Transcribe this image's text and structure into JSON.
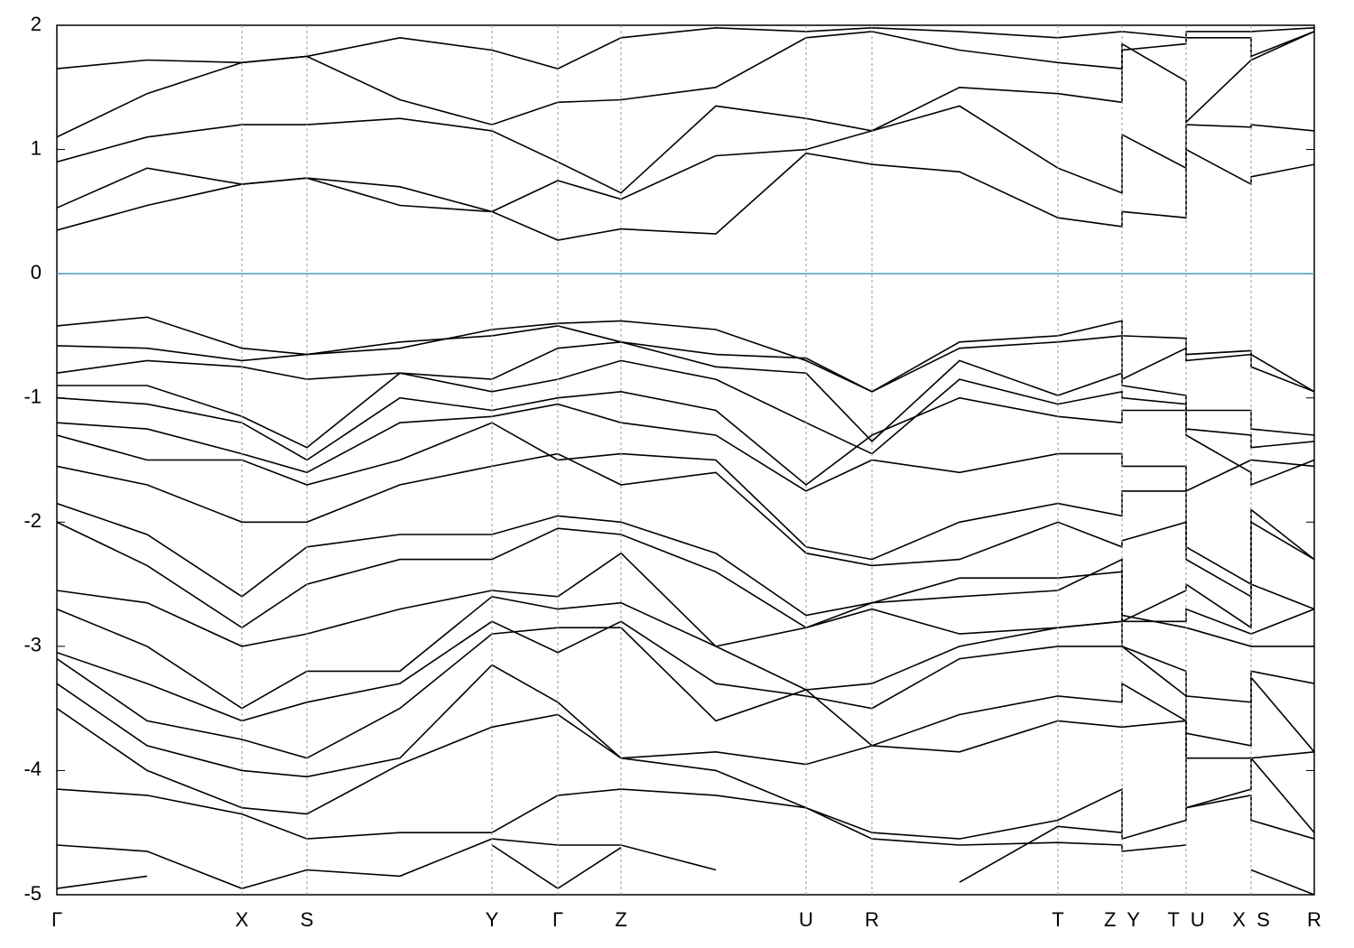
{
  "chart_data": {
    "type": "line",
    "color": "#000000",
    "xlim": [
      0,
      13.93
    ],
    "ylim": [
      -5,
      2
    ],
    "yticks": [
      -5,
      -4,
      -3,
      -2,
      -1,
      0,
      1,
      2
    ],
    "xticks": [
      {
        "value": 0,
        "label": "Γ"
      },
      {
        "value": 2.05,
        "label": "X"
      },
      {
        "value": 2.77,
        "label": "S"
      },
      {
        "value": 4.82,
        "label": "Y"
      },
      {
        "value": 5.55,
        "label": "Γ"
      },
      {
        "value": 6.25,
        "label": "Z"
      },
      {
        "value": 8.3,
        "label": "U"
      },
      {
        "value": 9.03,
        "label": "R"
      },
      {
        "value": 11.09,
        "label": "T"
      },
      {
        "value": 11.8,
        "label": "Z  Y"
      },
      {
        "value": 12.51,
        "label": "T  U"
      },
      {
        "value": 13.23,
        "label": "X  S"
      },
      {
        "value": 13.93,
        "label": "R"
      }
    ],
    "reference_line": {
      "value": 0,
      "color": "#4a9fc0"
    },
    "x": [
      0,
      1.0,
      2.05,
      2.77,
      3.8,
      4.82,
      5.55,
      6.25,
      7.3,
      8.3,
      9.03,
      10.0,
      11.09,
      11.8,
      11.8,
      12.51,
      12.51,
      13.23,
      13.23,
      13.93
    ],
    "series": [
      {
        "values": [
          0.35,
          0.55,
          0.72,
          0.77,
          0.55,
          0.5,
          0.27,
          0.36,
          0.32,
          0.97,
          0.88,
          0.82,
          0.45,
          0.38,
          0.5,
          0.45,
          1.0,
          0.72,
          0.78,
          0.88
        ]
      },
      {
        "values": [
          0.53,
          0.85,
          0.72,
          0.77,
          0.7,
          0.5,
          0.75,
          0.6,
          0.95,
          1.0,
          1.15,
          1.35,
          0.85,
          0.65,
          1.12,
          0.85,
          1.2,
          1.18,
          1.2,
          1.15
        ]
      },
      {
        "values": [
          0.9,
          1.1,
          1.2,
          1.2,
          1.25,
          1.15,
          0.9,
          0.65,
          1.35,
          1.25,
          1.15,
          1.5,
          1.45,
          1.38,
          1.85,
          1.55,
          1.22,
          1.72,
          1.72,
          1.95
        ]
      },
      {
        "values": [
          1.1,
          1.45,
          1.7,
          1.75,
          1.4,
          1.2,
          1.38,
          1.4,
          1.5,
          1.9,
          1.95,
          1.8,
          1.7,
          1.65,
          1.8,
          1.85,
          1.9,
          1.9,
          1.75,
          1.95
        ]
      },
      {
        "values": [
          1.65,
          1.72,
          1.7,
          1.75,
          1.9,
          1.8,
          1.65,
          1.9,
          1.98,
          1.95,
          1.98,
          1.95,
          1.9,
          1.95,
          1.95,
          1.9,
          1.95,
          1.95,
          1.95,
          1.98
        ]
      },
      {
        "values": [
          -0.42,
          -0.35,
          -0.6,
          -0.65,
          -0.6,
          -0.45,
          -0.4,
          -0.38,
          -0.45,
          -0.7,
          -0.95,
          -0.55,
          -0.5,
          -0.38,
          -0.5,
          -0.52,
          -0.65,
          -0.62,
          -0.65,
          -0.95
        ]
      },
      {
        "values": [
          -0.58,
          -0.6,
          -0.7,
          -0.65,
          -0.55,
          -0.5,
          -0.42,
          -0.55,
          -0.65,
          -0.68,
          -0.95,
          -0.6,
          -0.55,
          -0.5,
          -0.85,
          -0.6,
          -0.7,
          -0.65,
          -0.75,
          -0.95
        ]
      },
      {
        "values": [
          -0.8,
          -0.7,
          -0.75,
          -0.85,
          -0.8,
          -0.85,
          -0.6,
          -0.55,
          -0.75,
          -0.8,
          -1.35,
          -0.7,
          -0.98,
          -0.8,
          -0.9,
          -0.98,
          -1.1,
          -1.1,
          -1.25,
          -1.3
        ]
      },
      {
        "values": [
          -0.9,
          -0.9,
          -1.15,
          -1.4,
          -0.8,
          -0.95,
          -0.85,
          -0.7,
          -0.85,
          -1.2,
          -1.45,
          -0.85,
          -1.05,
          -0.95,
          -1.0,
          -1.05,
          -1.25,
          -1.3,
          -1.4,
          -1.35
        ]
      },
      {
        "values": [
          -1.0,
          -1.05,
          -1.2,
          -1.5,
          -1.0,
          -1.1,
          -1.0,
          -0.95,
          -1.1,
          -1.7,
          -1.3,
          -1.0,
          -1.15,
          -1.2,
          -1.1,
          -1.1,
          -1.3,
          -1.6,
          -1.7,
          -1.5
        ]
      },
      {
        "values": [
          -1.2,
          -1.25,
          -1.45,
          -1.6,
          -1.2,
          -1.15,
          -1.05,
          -1.2,
          -1.3,
          -1.75,
          -1.5,
          -1.6,
          -1.45,
          -1.45,
          -1.55,
          -1.55,
          -1.75,
          -1.5,
          -1.5,
          -1.55
        ]
      },
      {
        "values": [
          -1.3,
          -1.5,
          -1.5,
          -1.7,
          -1.5,
          -1.2,
          -1.5,
          -1.45,
          -1.5,
          -2.2,
          -2.3,
          -2.0,
          -1.85,
          -1.95,
          -1.75,
          -1.75,
          -2.2,
          -2.5,
          -1.9,
          -2.3
        ]
      },
      {
        "values": [
          -1.55,
          -1.7,
          -2.0,
          -2.0,
          -1.7,
          -1.55,
          -1.45,
          -1.7,
          -1.6,
          -2.25,
          -2.35,
          -2.3,
          -2.0,
          -2.2,
          -2.15,
          -2.0,
          -2.3,
          -2.6,
          -2.0,
          -2.3
        ]
      },
      {
        "values": [
          -1.85,
          -2.1,
          -2.6,
          -2.2,
          -2.1,
          -2.1,
          -1.95,
          -2.0,
          -2.25,
          -2.75,
          -2.65,
          -2.6,
          -2.55,
          -2.3,
          -2.8,
          -2.55,
          -2.5,
          -2.85,
          -2.5,
          -2.7
        ]
      },
      {
        "values": [
          -2.0,
          -2.35,
          -2.85,
          -2.5,
          -2.3,
          -2.3,
          -2.05,
          -2.1,
          -2.4,
          -2.85,
          -2.65,
          -2.45,
          -2.45,
          -2.4,
          -2.8,
          -2.8,
          -2.7,
          -2.9,
          -2.9,
          -2.7
        ]
      },
      {
        "values": [
          -2.55,
          -2.65,
          -3.0,
          -2.9,
          -2.7,
          -2.55,
          -2.6,
          -2.25,
          -3.0,
          -2.85,
          -2.7,
          -2.9,
          -2.85,
          -2.8,
          -2.75,
          -2.85,
          -2.85,
          -3.0,
          -3.0,
          -3.0
        ]
      },
      {
        "values": [
          -2.7,
          -3.0,
          -3.5,
          -3.2,
          -3.2,
          -2.6,
          -2.7,
          -2.65,
          -3.0,
          -3.35,
          -3.3,
          -3.0,
          -2.85,
          -2.8,
          -3.0,
          -3.2,
          -3.4,
          -3.45,
          -3.2,
          -3.3
        ]
      },
      {
        "values": [
          -3.05,
          -3.3,
          -3.6,
          -3.45,
          -3.3,
          -2.8,
          -3.05,
          -2.8,
          -3.3,
          -3.4,
          -3.5,
          -3.1,
          -3.0,
          -3.0,
          -3.0,
          -3.4,
          -3.7,
          -3.8,
          -3.25,
          -3.85
        ]
      },
      {
        "values": [
          -3.1,
          -3.6,
          -3.75,
          -3.9,
          -3.5,
          -2.9,
          -2.85,
          -2.85,
          -3.6,
          -3.35,
          -3.8,
          -3.55,
          -3.4,
          -3.45,
          -3.3,
          -3.6,
          -3.9,
          -3.9,
          -3.9,
          -3.85
        ]
      },
      {
        "values": [
          -3.3,
          -3.8,
          -4.0,
          -4.05,
          -3.9,
          -3.15,
          -3.45,
          -3.9,
          -3.85,
          -3.95,
          -3.8,
          -3.85,
          -3.6,
          -3.65,
          -3.65,
          -3.6,
          -4.3,
          -4.15,
          -3.9,
          -4.5
        ]
      },
      {
        "values": [
          -3.5,
          -4.0,
          -4.3,
          -4.35,
          -3.95,
          -3.65,
          -3.55,
          -3.9,
          -4.0,
          -4.3,
          -4.5,
          -4.55,
          -4.4,
          -4.15,
          -4.55,
          -4.4,
          -4.3,
          -4.2,
          -4.4,
          -4.55
        ]
      },
      {
        "values": [
          -4.15,
          -4.2,
          -4.35,
          -4.55,
          -4.5,
          -4.5,
          -4.2,
          -4.15,
          -4.2,
          -4.3,
          -4.55,
          -4.6,
          -4.58,
          -4.6,
          -4.65,
          -4.6,
          null,
          null,
          -4.8,
          -5.0
        ]
      },
      {
        "values": [
          -4.6,
          -4.65,
          -4.95,
          -4.8,
          -4.85,
          -4.55,
          -4.6,
          -4.6,
          -4.8,
          null,
          null,
          -4.9,
          -4.45,
          -4.5,
          null,
          null,
          null,
          null,
          null,
          null
        ]
      },
      {
        "values": [
          -4.95,
          -4.85,
          null,
          null,
          null,
          -4.6,
          -4.95,
          -4.62,
          null,
          null,
          null,
          null,
          null,
          null,
          null,
          null,
          null,
          null,
          null,
          null
        ]
      }
    ]
  }
}
